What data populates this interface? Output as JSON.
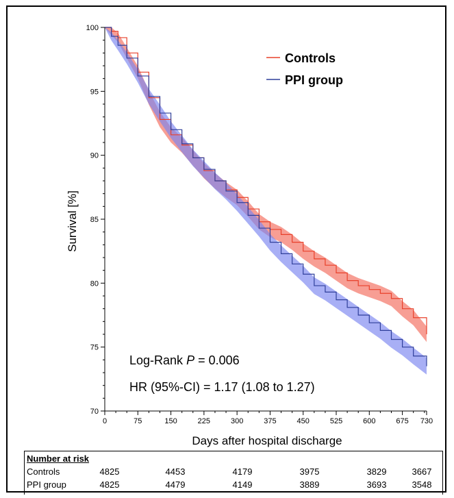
{
  "chart_data": {
    "type": "line",
    "xlabel": "Days after hospital discharge",
    "ylabel": "Survival [%]",
    "xlim": [
      0,
      730
    ],
    "ylim": [
      70,
      100
    ],
    "x_ticks": [
      0,
      75,
      150,
      225,
      300,
      375,
      450,
      525,
      600,
      675,
      730
    ],
    "y_ticks": [
      70,
      75,
      80,
      85,
      90,
      95,
      100
    ],
    "legend_position": "top-right",
    "grid": false,
    "series": [
      {
        "name": "Controls",
        "color": "#e8402a",
        "band_color": "#f26a5a",
        "x": [
          0,
          15,
          30,
          50,
          75,
          100,
          125,
          150,
          175,
          200,
          225,
          250,
          275,
          300,
          325,
          350,
          375,
          400,
          425,
          450,
          475,
          500,
          525,
          550,
          575,
          600,
          625,
          650,
          675,
          700,
          730
        ],
        "y": [
          100,
          99.7,
          99.2,
          98.0,
          96.5,
          94.5,
          92.8,
          91.6,
          90.8,
          89.8,
          88.8,
          88.0,
          87.3,
          86.7,
          85.8,
          84.8,
          84.2,
          83.8,
          83.2,
          82.5,
          81.9,
          81.4,
          80.8,
          80.2,
          79.8,
          79.5,
          79.2,
          78.8,
          78.0,
          77.3,
          76.0
        ],
        "ci_halfwidth": 0.6
      },
      {
        "name": "PPI group",
        "color": "#2f3f9a",
        "band_color": "#7a84f0",
        "x": [
          0,
          15,
          30,
          50,
          75,
          100,
          125,
          150,
          175,
          200,
          225,
          250,
          275,
          300,
          325,
          350,
          375,
          400,
          425,
          450,
          475,
          500,
          525,
          550,
          575,
          600,
          625,
          650,
          675,
          700,
          730
        ],
        "y": [
          100,
          99.3,
          98.6,
          97.6,
          96.2,
          94.6,
          93.3,
          92.0,
          90.9,
          89.8,
          88.9,
          88.0,
          87.2,
          86.3,
          85.3,
          84.3,
          83.2,
          82.3,
          81.5,
          80.7,
          79.8,
          79.3,
          78.7,
          78.1,
          77.5,
          76.9,
          76.3,
          75.6,
          75.0,
          74.3,
          73.5
        ],
        "ci_halfwidth": 0.65
      }
    ],
    "annotations": {
      "logrank_prefix": "Log-Rank ",
      "logrank_p": "P",
      "logrank_value": " = 0.006",
      "hr": "HR (95%-CI) = 1.17 (1.08 to 1.27)"
    }
  },
  "risk_table": {
    "title": "Number at risk",
    "rows": [
      {
        "label": "Controls",
        "values": [
          "4825",
          "4453",
          "4179",
          "3975",
          "3829",
          "3667"
        ]
      },
      {
        "label": "PPI group",
        "values": [
          "4825",
          "4479",
          "4149",
          "3889",
          "3693",
          "3548"
        ]
      }
    ]
  }
}
